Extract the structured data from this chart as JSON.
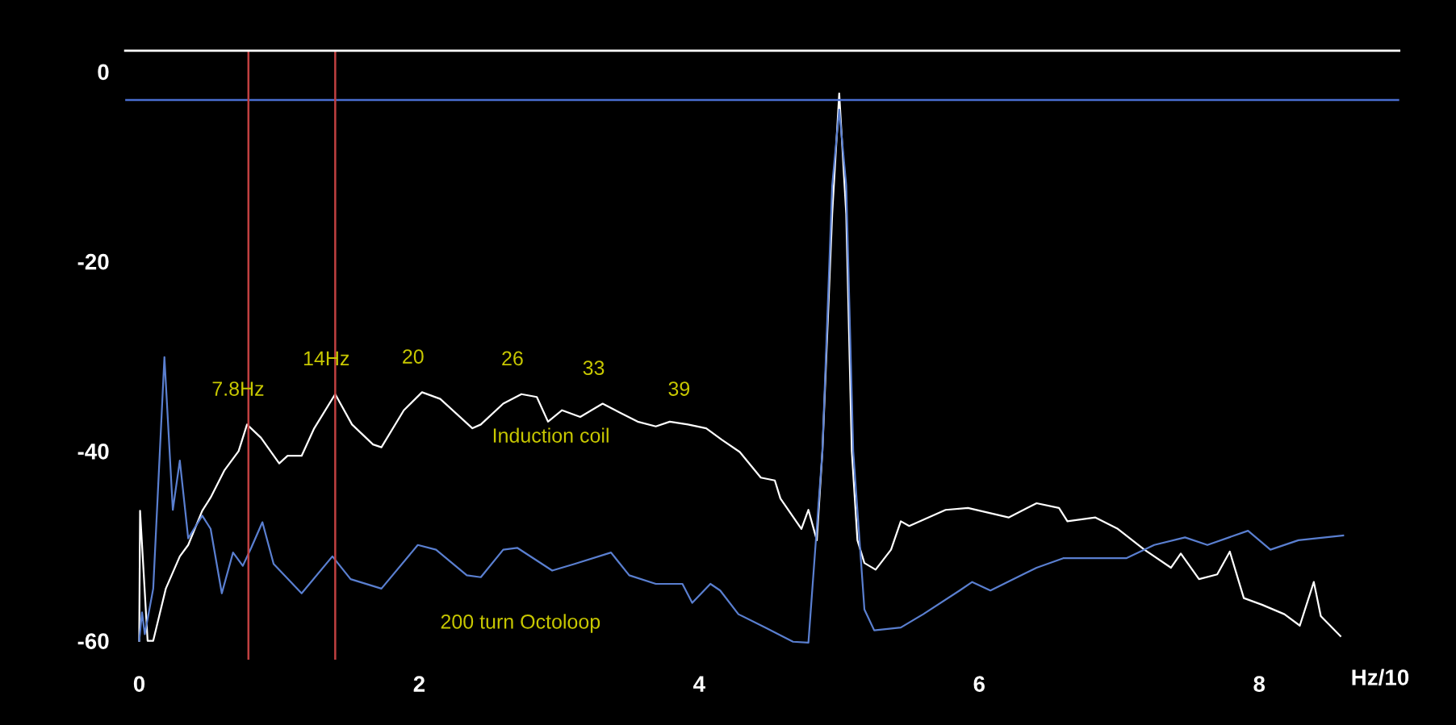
{
  "chart_data": {
    "type": "line",
    "xlabel": "Hz/10",
    "xlim": [
      -0.1,
      9.0
    ],
    "xticks": [
      0,
      2,
      4,
      6,
      8
    ],
    "ylim": [
      -62,
      2.2
    ],
    "yticks": [
      0,
      -20,
      -40,
      -60
    ],
    "grid": false,
    "legend": false,
    "marker": "none",
    "line_style": "solid",
    "series": [
      {
        "name": "Induction coil",
        "color": "#ffffff",
        "x": [
          0,
          0.006,
          0.06,
          0.1,
          0.19,
          0.29,
          0.35,
          0.45,
          0.51,
          0.61,
          0.71,
          0.77,
          0.87,
          1.0,
          1.06,
          1.16,
          1.25,
          1.4,
          1.52,
          1.67,
          1.73,
          1.89,
          2.02,
          2.15,
          2.38,
          2.44,
          2.6,
          2.73,
          2.84,
          2.92,
          3.02,
          3.15,
          3.31,
          3.44,
          3.56,
          3.69,
          3.79,
          3.92,
          4.05,
          4.16,
          4.29,
          4.44,
          4.54,
          4.58,
          4.73,
          4.78,
          4.84,
          4.88,
          4.95,
          5.0,
          5.05,
          5.09,
          5.13,
          5.18,
          5.26,
          5.37,
          5.44,
          5.5,
          5.76,
          5.92,
          6.21,
          6.41,
          6.57,
          6.63,
          6.83,
          6.99,
          7.18,
          7.37,
          7.44,
          7.57,
          7.7,
          7.79,
          7.89,
          8.02,
          8.18,
          8.29,
          8.39,
          8.44,
          8.58
        ],
        "values": [
          -60,
          -46.3,
          -60,
          -60,
          -54.5,
          -51.1,
          -49.9,
          -46.3,
          -44.9,
          -42.0,
          -40.0,
          -37.2,
          -38.6,
          -41.3,
          -40.5,
          -40.5,
          -37.6,
          -34.0,
          -37.2,
          -39.3,
          -39.6,
          -35.7,
          -33.8,
          -34.5,
          -37.6,
          -37.2,
          -35.0,
          -34.0,
          -34.3,
          -36.9,
          -35.7,
          -36.4,
          -35.0,
          -36.0,
          -36.9,
          -37.4,
          -36.9,
          -37.2,
          -37.6,
          -38.8,
          -40.1,
          -42.8,
          -43.1,
          -45.0,
          -48.2,
          -46.2,
          -49.4,
          -40,
          -15,
          -2.3,
          -15,
          -40,
          -49.4,
          -51.8,
          -52.5,
          -50.4,
          -47.4,
          -47.9,
          -46.2,
          -46.0,
          -47.0,
          -45.5,
          -46.0,
          -47.4,
          -47.0,
          -48.2,
          -50.4,
          -52.3,
          -50.8,
          -53.5,
          -53.0,
          -50.6,
          -55.5,
          -56.2,
          -57.2,
          -58.4,
          -53.8,
          -57.4,
          -59.5
        ]
      },
      {
        "name": "200 turn Octoloop",
        "color": "#5a7fd0",
        "x": [
          0,
          0.02,
          0.04,
          0.1,
          0.18,
          0.24,
          0.29,
          0.35,
          0.45,
          0.51,
          0.59,
          0.67,
          0.74,
          0.8,
          0.88,
          0.96,
          1.16,
          1.38,
          1.51,
          1.73,
          1.99,
          2.12,
          2.34,
          2.44,
          2.6,
          2.7,
          2.95,
          3.11,
          3.37,
          3.5,
          3.69,
          3.88,
          3.95,
          4.08,
          4.15,
          4.28,
          4.47,
          4.67,
          4.78,
          4.88,
          4.95,
          5.0,
          5.05,
          5.1,
          5.18,
          5.25,
          5.44,
          5.6,
          5.86,
          5.95,
          6.08,
          6.41,
          6.6,
          7.05,
          7.25,
          7.47,
          7.63,
          7.92,
          8.08,
          8.28,
          8.6
        ],
        "values": [
          -60,
          -57,
          -59.3,
          -54.5,
          -30.1,
          -46.2,
          -41.0,
          -49.2,
          -46.8,
          -48.2,
          -55.0,
          -50.7,
          -52.1,
          -50.2,
          -47.5,
          -51.9,
          -55.0,
          -51.1,
          -53.5,
          -54.5,
          -49.9,
          -50.4,
          -53.1,
          -53.3,
          -50.4,
          -50.2,
          -52.6,
          -51.9,
          -50.7,
          -53.1,
          -54.0,
          -54.0,
          -56.0,
          -54.0,
          -54.7,
          -57.2,
          -58.6,
          -60.1,
          -60.2,
          -40,
          -12,
          -4,
          -12,
          -40,
          -56.7,
          -58.9,
          -58.6,
          -57.2,
          -54.7,
          -53.8,
          -54.7,
          -52.3,
          -51.3,
          -51.3,
          -49.9,
          -49.1,
          -49.9,
          -48.4,
          -50.4,
          -49.4,
          -48.9
        ]
      }
    ],
    "ref_lines": [
      {
        "axis": "y",
        "value": -3,
        "color": "#4a6ed0"
      },
      {
        "axis": "x",
        "value": 0.78,
        "color": "#c04040"
      },
      {
        "axis": "x",
        "value": 1.4,
        "color": "#c04040"
      }
    ],
    "annotations": [
      {
        "text": "7.8Hz",
        "x": 0.77,
        "y": -37.2
      },
      {
        "text": "14Hz",
        "x": 1.4,
        "y": -34.0
      },
      {
        "text": "20",
        "x": 2.02,
        "y": -33.8
      },
      {
        "text": "26",
        "x": 2.73,
        "y": -34.0
      },
      {
        "text": "33",
        "x": 3.31,
        "y": -35.0
      },
      {
        "text": "39",
        "x": 3.92,
        "y": -37.2
      }
    ]
  }
}
